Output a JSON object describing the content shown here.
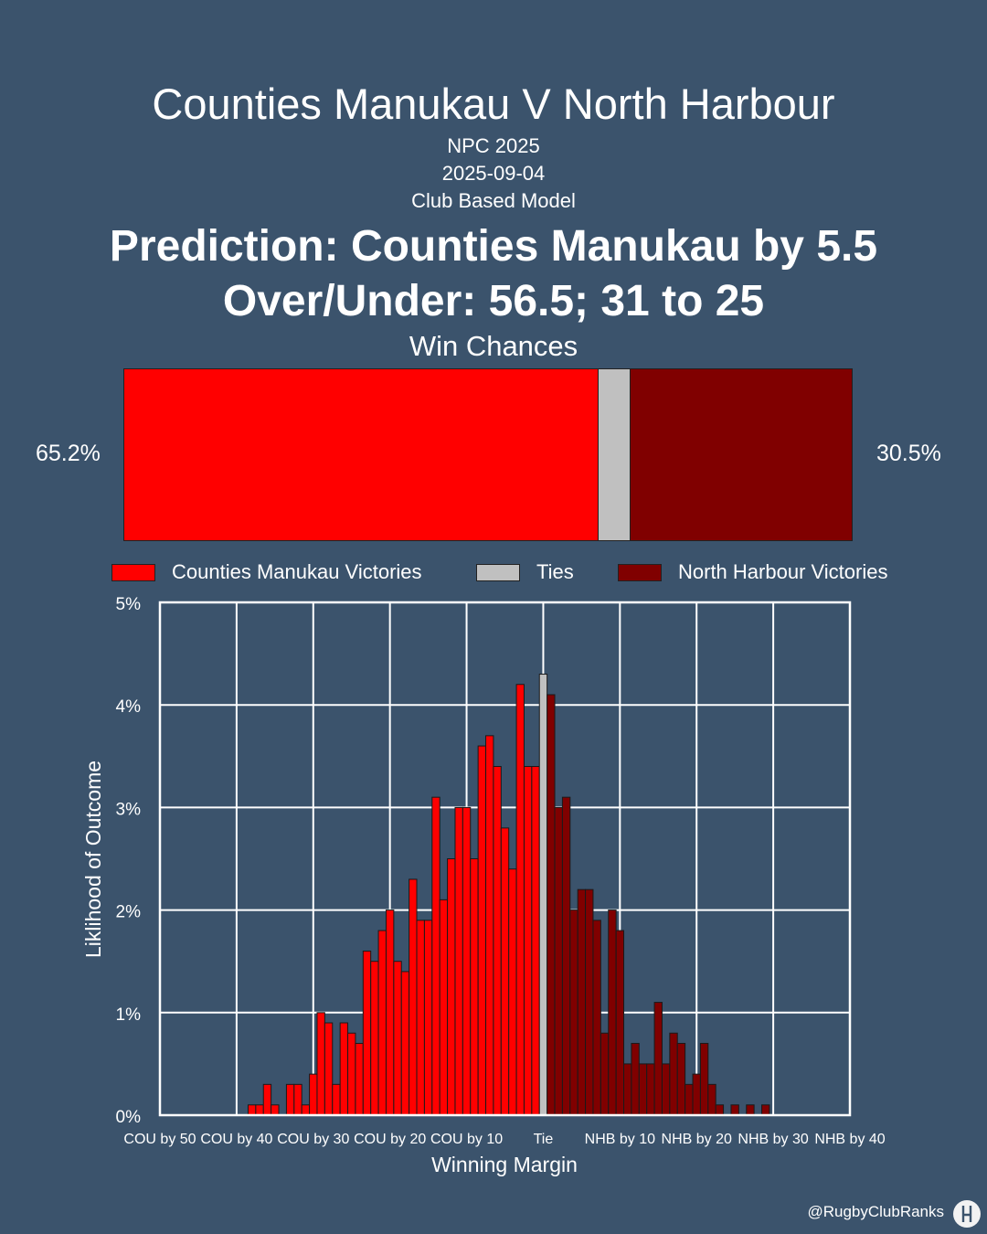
{
  "header": {
    "title": "Counties Manukau V North Harbour",
    "competition": "NPC 2025",
    "date": "2025-09-04",
    "model": "Club Based Model",
    "prediction": "Prediction: Counties Manukau by 5.5",
    "over_under": "Over/Under: 56.5; 31 to 25"
  },
  "win_chances": {
    "title": "Win Chances",
    "home_pct": 65.2,
    "tie_pct": 4.3,
    "away_pct": 30.5,
    "home_label": "65.2%",
    "away_label": "30.5%"
  },
  "legend": {
    "home": "Counties Manukau Victories",
    "tie": "Ties",
    "away": "North Harbour Victories"
  },
  "colors": {
    "home": "#ff0000",
    "tie": "#c0c0c0",
    "away": "#800000",
    "background": "#3b536c",
    "grid": "#ffffff"
  },
  "chart_data": {
    "type": "bar",
    "xlabel": "Winning Margin",
    "ylabel": "Liklihood of Outcome",
    "ylim": [
      0,
      5
    ],
    "y_ticks": [
      "0%",
      "1%",
      "2%",
      "3%",
      "4%",
      "5%"
    ],
    "x_ticks": [
      {
        "margin": -50,
        "label": "COU by 50"
      },
      {
        "margin": -40,
        "label": "COU by 40"
      },
      {
        "margin": -30,
        "label": "COU by 30"
      },
      {
        "margin": -20,
        "label": "COU by 20"
      },
      {
        "margin": -10,
        "label": "COU by 10"
      },
      {
        "margin": 0,
        "label": "Tie"
      },
      {
        "margin": 10,
        "label": "NHB by 10"
      },
      {
        "margin": 20,
        "label": "NHB by 20"
      },
      {
        "margin": 30,
        "label": "NHB by 30"
      },
      {
        "margin": 40,
        "label": "NHB by 40"
      }
    ],
    "xlim": [
      -50,
      40
    ],
    "grid": true,
    "home_series": [
      {
        "margin": -38,
        "value": 0.1
      },
      {
        "margin": -37,
        "value": 0.1
      },
      {
        "margin": -36,
        "value": 0.3
      },
      {
        "margin": -35,
        "value": 0.1
      },
      {
        "margin": -33,
        "value": 0.3
      },
      {
        "margin": -32,
        "value": 0.3
      },
      {
        "margin": -31,
        "value": 0.1
      },
      {
        "margin": -30,
        "value": 0.4
      },
      {
        "margin": -29,
        "value": 1.0
      },
      {
        "margin": -28,
        "value": 0.9
      },
      {
        "margin": -27,
        "value": 0.3
      },
      {
        "margin": -26,
        "value": 0.9
      },
      {
        "margin": -25,
        "value": 0.8
      },
      {
        "margin": -24,
        "value": 0.7
      },
      {
        "margin": -23,
        "value": 1.6
      },
      {
        "margin": -22,
        "value": 1.5
      },
      {
        "margin": -21,
        "value": 1.8
      },
      {
        "margin": -20,
        "value": 2.0
      },
      {
        "margin": -19,
        "value": 1.5
      },
      {
        "margin": -18,
        "value": 1.4
      },
      {
        "margin": -17,
        "value": 2.3
      },
      {
        "margin": -16,
        "value": 1.9
      },
      {
        "margin": -15,
        "value": 1.9
      },
      {
        "margin": -14,
        "value": 3.1
      },
      {
        "margin": -13,
        "value": 2.1
      },
      {
        "margin": -12,
        "value": 2.5
      },
      {
        "margin": -11,
        "value": 3.0
      },
      {
        "margin": -10,
        "value": 3.0
      },
      {
        "margin": -9,
        "value": 2.5
      },
      {
        "margin": -8,
        "value": 3.6
      },
      {
        "margin": -7,
        "value": 3.7
      },
      {
        "margin": -6,
        "value": 3.4
      },
      {
        "margin": -5,
        "value": 2.8
      },
      {
        "margin": -4,
        "value": 2.4
      },
      {
        "margin": -3,
        "value": 4.2
      },
      {
        "margin": -2,
        "value": 3.4
      },
      {
        "margin": -1,
        "value": 3.4
      }
    ],
    "tie_series": [
      {
        "margin": 0,
        "value": 4.3
      }
    ],
    "away_series": [
      {
        "margin": 1,
        "value": 4.1
      },
      {
        "margin": 2,
        "value": 3.0
      },
      {
        "margin": 3,
        "value": 3.1
      },
      {
        "margin": 4,
        "value": 2.0
      },
      {
        "margin": 5,
        "value": 2.2
      },
      {
        "margin": 6,
        "value": 2.2
      },
      {
        "margin": 7,
        "value": 1.9
      },
      {
        "margin": 8,
        "value": 0.8
      },
      {
        "margin": 9,
        "value": 2.0
      },
      {
        "margin": 10,
        "value": 1.8
      },
      {
        "margin": 11,
        "value": 0.5
      },
      {
        "margin": 12,
        "value": 0.7
      },
      {
        "margin": 13,
        "value": 0.5
      },
      {
        "margin": 14,
        "value": 0.5
      },
      {
        "margin": 15,
        "value": 1.1
      },
      {
        "margin": 16,
        "value": 0.5
      },
      {
        "margin": 17,
        "value": 0.8
      },
      {
        "margin": 18,
        "value": 0.7
      },
      {
        "margin": 19,
        "value": 0.3
      },
      {
        "margin": 20,
        "value": 0.4
      },
      {
        "margin": 21,
        "value": 0.7
      },
      {
        "margin": 22,
        "value": 0.3
      },
      {
        "margin": 23,
        "value": 0.1
      },
      {
        "margin": 25,
        "value": 0.1
      },
      {
        "margin": 27,
        "value": 0.1
      },
      {
        "margin": 29,
        "value": 0.1
      }
    ]
  },
  "footer": {
    "handle": "@RugbyClubRanks",
    "logo_icon": "rugby-posts-icon"
  }
}
